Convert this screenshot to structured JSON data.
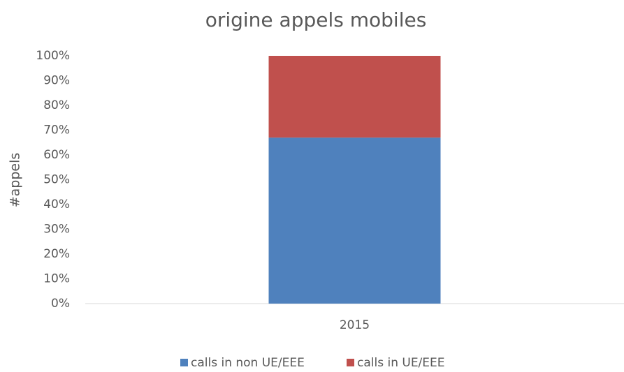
{
  "chart_data": {
    "type": "stacked_bar",
    "title": "origine appels mobiles",
    "ylabel": "#appels",
    "categories": [
      "2015"
    ],
    "series": [
      {
        "name": "calls in non UE/EEE",
        "color": "#4f81bd",
        "values": [
          67
        ]
      },
      {
        "name": "calls in UE/EEE",
        "color": "#c0504d",
        "values": [
          33
        ]
      }
    ],
    "ylim": [
      0,
      100
    ],
    "yticks": [
      {
        "value": 0,
        "label": "0%"
      },
      {
        "value": 10,
        "label": "10%"
      },
      {
        "value": 20,
        "label": "20%"
      },
      {
        "value": 30,
        "label": "30%"
      },
      {
        "value": 40,
        "label": "40%"
      },
      {
        "value": 50,
        "label": "50%"
      },
      {
        "value": 60,
        "label": "60%"
      },
      {
        "value": 70,
        "label": "70%"
      },
      {
        "value": 80,
        "label": "80%"
      },
      {
        "value": 90,
        "label": "90%"
      },
      {
        "value": 100,
        "label": "100%"
      }
    ],
    "grid": false,
    "legend": "bottom"
  }
}
